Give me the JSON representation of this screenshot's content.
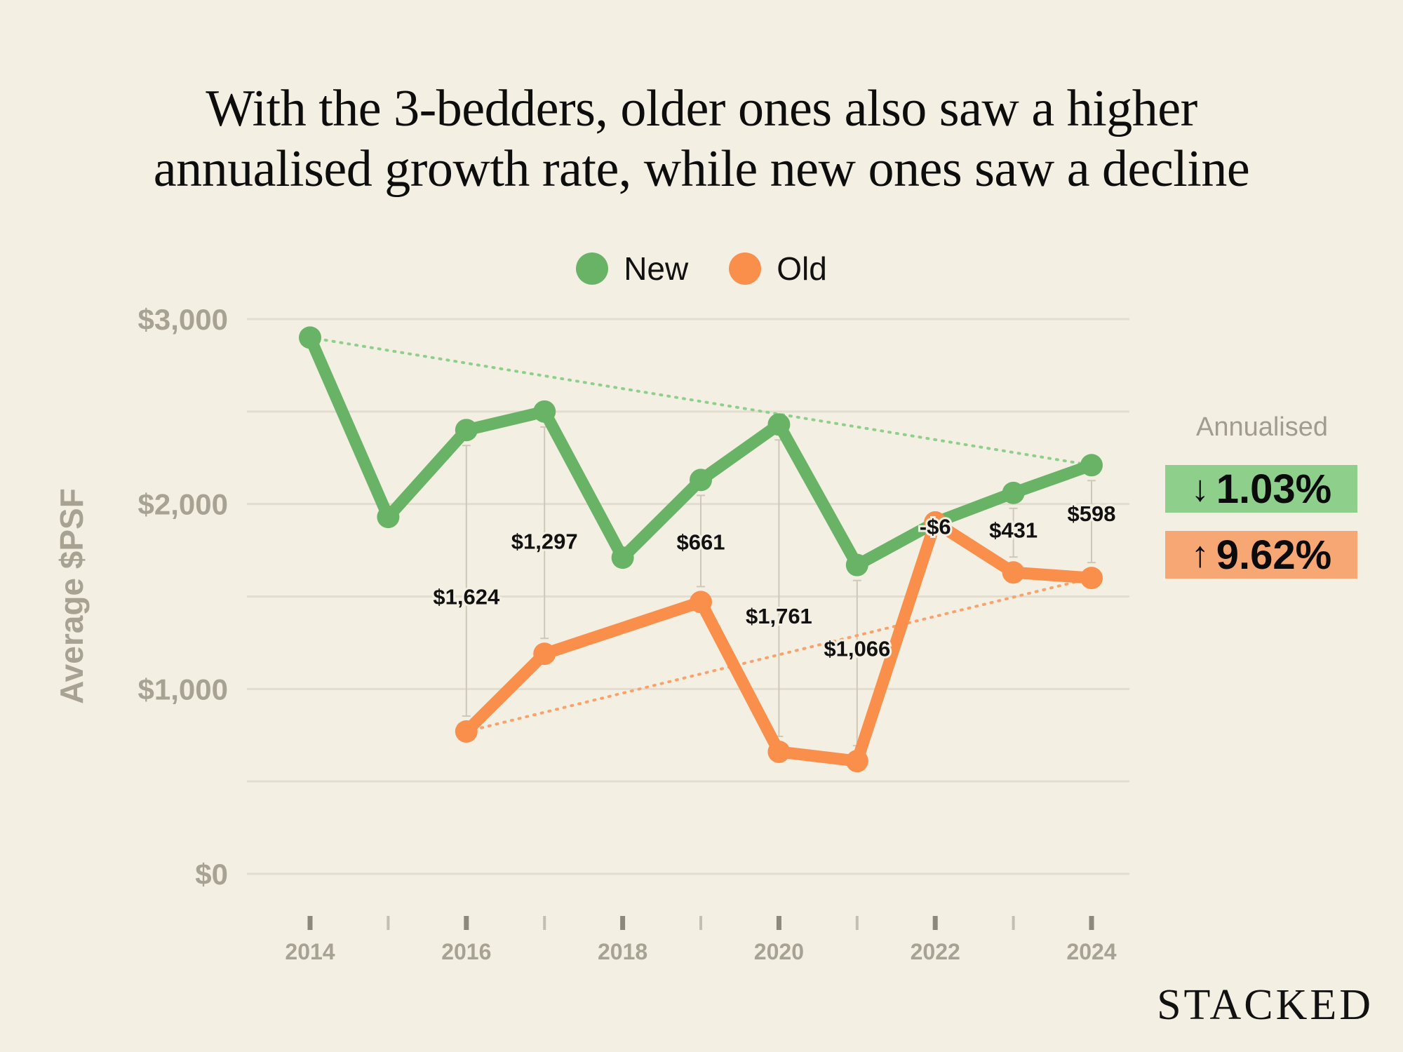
{
  "chart_data": {
    "type": "line",
    "title": [
      "With the 3-bedders, older ones also saw a higher",
      "annualised growth rate, while new ones saw a decline"
    ],
    "ylabel": "Average $PSF",
    "xlabel": "",
    "ylim": [
      0,
      3000
    ],
    "y_ticks": [
      {
        "value": 3000,
        "label": "$3,000"
      },
      {
        "value": 2500,
        "label": ""
      },
      {
        "value": 2000,
        "label": "$2,000"
      },
      {
        "value": 1500,
        "label": ""
      },
      {
        "value": 1000,
        "label": "$1,000"
      },
      {
        "value": 500,
        "label": ""
      },
      {
        "value": 0,
        "label": "$0"
      }
    ],
    "x": [
      2014,
      2015,
      2016,
      2017,
      2018,
      2019,
      2020,
      2021,
      2022,
      2023,
      2024
    ],
    "x_tick_labels": [
      "2014",
      "",
      "2016",
      "",
      "2018",
      "",
      "2020",
      "",
      "2022",
      "",
      "2024"
    ],
    "grid": true,
    "legend": "top-center",
    "series": [
      {
        "name": "New",
        "color": "#69b366",
        "values": [
          2900,
          1930,
          2400,
          2500,
          1710,
          2130,
          2430,
          1670,
          1900,
          2060,
          2210
        ]
      },
      {
        "name": "Old",
        "color": "#f98f4a",
        "values": [
          null,
          null,
          770,
          1190,
          null,
          1470,
          660,
          610,
          1900,
          1630,
          1600
        ]
      }
    ],
    "trend_lines": [
      {
        "series": "New",
        "from": [
          2014,
          2900
        ],
        "to": [
          2024,
          2210
        ]
      },
      {
        "series": "Old",
        "from": [
          2016,
          770
        ],
        "to": [
          2024,
          1600
        ]
      }
    ],
    "gap_labels": [
      {
        "x": 2016,
        "label": "$1,624",
        "label_y": 1500
      },
      {
        "x": 2017,
        "label": "$1,297",
        "label_y": 1800
      },
      {
        "x": 2019,
        "label": "$661",
        "label_y": 1795
      },
      {
        "x": 2020,
        "label": "$1,761",
        "label_y": 1395
      },
      {
        "x": 2021,
        "label": "$1,066",
        "label_y": 1220
      },
      {
        "x": 2022,
        "label": "-$6",
        "label_y": 1880
      },
      {
        "x": 2023,
        "label": "$431",
        "label_y": 1860
      },
      {
        "x": 2024,
        "label": "$598",
        "label_y": 1950
      }
    ]
  },
  "annualised": {
    "title": "Annualised",
    "new": {
      "arrow": "↓",
      "value": "1.03%",
      "color": "#8ecf8c"
    },
    "old": {
      "arrow": "↑",
      "value": "9.62%",
      "color": "#f6a773"
    }
  },
  "legend_labels": {
    "new": "New",
    "old": "Old"
  },
  "brand": "STACKED",
  "colors": {
    "background": "#f4efe3",
    "axis_text": "#a8a293",
    "grid": "#e3ddcf"
  }
}
